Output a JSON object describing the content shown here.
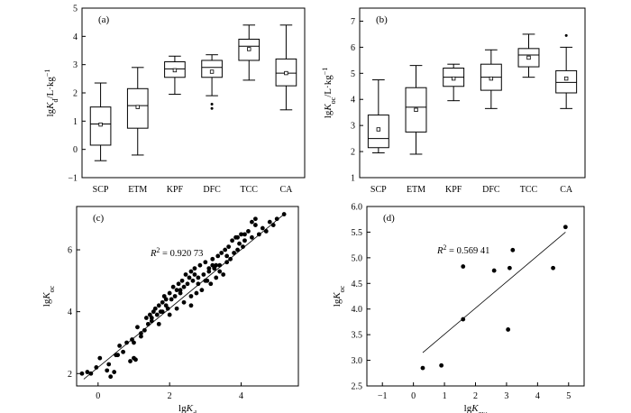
{
  "chart_data": [
    {
      "id": "a",
      "type": "box",
      "panel_label": "(a)",
      "ylabel_html": "lgK<sub>d</sub>/L·kg<sup>−1</sup>",
      "ylim": [
        -1,
        5
      ],
      "yticks": [
        -1,
        0,
        1,
        2,
        3,
        4,
        5
      ],
      "categories": [
        "SCP",
        "ETM",
        "KPF",
        "DFC",
        "TCC",
        "CA"
      ],
      "boxes": [
        {
          "whisker_low": -0.4,
          "q1": 0.15,
          "median": 0.9,
          "q3": 1.5,
          "whisker_high": 2.35,
          "mean": 0.88,
          "outliers": []
        },
        {
          "whisker_low": -0.2,
          "q1": 0.75,
          "median": 1.55,
          "q3": 2.15,
          "whisker_high": 2.9,
          "mean": 1.5,
          "outliers": []
        },
        {
          "whisker_low": 1.95,
          "q1": 2.55,
          "median": 2.85,
          "q3": 3.1,
          "whisker_high": 3.3,
          "mean": 2.8,
          "outliers": []
        },
        {
          "whisker_low": 1.9,
          "q1": 2.55,
          "median": 2.9,
          "q3": 3.15,
          "whisker_high": 3.35,
          "mean": 2.75,
          "outliers": [
            1.6,
            1.45
          ]
        },
        {
          "whisker_low": 2.45,
          "q1": 3.15,
          "median": 3.65,
          "q3": 3.9,
          "whisker_high": 4.4,
          "mean": 3.55,
          "outliers": []
        },
        {
          "whisker_low": 1.4,
          "q1": 2.25,
          "median": 2.7,
          "q3": 3.2,
          "whisker_high": 4.4,
          "mean": 2.7,
          "outliers": []
        }
      ]
    },
    {
      "id": "b",
      "type": "box",
      "panel_label": "(b)",
      "ylabel_html": "lgK<sub>oc</sub>/L·kg<sup>−1</sup>",
      "ylim": [
        1,
        7.5
      ],
      "yticks": [
        1,
        2,
        3,
        4,
        5,
        6,
        7
      ],
      "categories": [
        "SCP",
        "ETM",
        "KPF",
        "DFC",
        "TCC",
        "CA"
      ],
      "boxes": [
        {
          "whisker_low": 1.95,
          "q1": 2.15,
          "median": 2.5,
          "q3": 3.4,
          "whisker_high": 4.75,
          "mean": 2.85,
          "outliers": []
        },
        {
          "whisker_low": 1.9,
          "q1": 2.75,
          "median": 3.7,
          "q3": 4.45,
          "whisker_high": 5.3,
          "mean": 3.6,
          "outliers": []
        },
        {
          "whisker_low": 3.95,
          "q1": 4.5,
          "median": 4.85,
          "q3": 5.2,
          "whisker_high": 5.35,
          "mean": 4.8,
          "outliers": []
        },
        {
          "whisker_low": 3.65,
          "q1": 4.35,
          "median": 4.85,
          "q3": 5.35,
          "whisker_high": 5.9,
          "mean": 4.8,
          "outliers": []
        },
        {
          "whisker_low": 4.85,
          "q1": 5.25,
          "median": 5.7,
          "q3": 5.95,
          "whisker_high": 6.5,
          "mean": 5.6,
          "outliers": []
        },
        {
          "whisker_low": 3.65,
          "q1": 4.25,
          "median": 4.65,
          "q3": 5.1,
          "whisker_high": 6.0,
          "mean": 4.8,
          "outliers": [
            6.45
          ]
        }
      ]
    },
    {
      "id": "c",
      "type": "scatter",
      "panel_label": "(c)",
      "annotation_html": "<tspan font-style='italic'>R</tspan><tspan baseline-shift='super' font-size='8'>2</tspan> = 0.920 73",
      "xlabel_html": "lgK<sub>d</sub>",
      "ylabel_html": "lgK<sub>oc</sub>",
      "xlim": [
        -0.6,
        5.6
      ],
      "ylim": [
        1.6,
        7.4
      ],
      "xticks": [
        0,
        2,
        4
      ],
      "yticks": [
        2,
        4,
        6
      ],
      "fit": {
        "x": [
          -0.4,
          5.2
        ],
        "y": [
          1.82,
          7.15
        ]
      },
      "x": [
        -0.45,
        -0.3,
        -0.2,
        -0.05,
        0.05,
        0.25,
        0.35,
        0.45,
        0.55,
        0.6,
        0.7,
        0.8,
        0.9,
        0.95,
        1.0,
        1.05,
        1.1,
        1.2,
        1.3,
        1.35,
        1.4,
        1.45,
        1.5,
        1.55,
        1.6,
        1.65,
        1.7,
        1.75,
        1.8,
        1.85,
        1.9,
        1.95,
        2.0,
        2.05,
        2.1,
        2.15,
        2.2,
        2.25,
        2.3,
        2.35,
        2.4,
        2.45,
        2.5,
        2.55,
        2.6,
        2.65,
        2.7,
        2.75,
        2.8,
        2.85,
        2.9,
        2.95,
        3.0,
        3.05,
        3.1,
        3.15,
        3.2,
        3.25,
        3.3,
        3.35,
        3.4,
        3.45,
        3.5,
        3.55,
        3.6,
        3.65,
        3.7,
        3.75,
        3.8,
        3.85,
        3.9,
        3.95,
        4.0,
        4.05,
        4.1,
        4.2,
        4.3,
        4.4,
        4.5,
        4.6,
        4.7,
        4.8,
        4.9,
        5.0,
        5.2,
        1.0,
        0.3,
        0.5,
        1.2,
        1.7,
        1.9,
        2.2,
        2.4,
        2.6,
        2.8,
        3.0,
        3.2,
        3.4,
        2.0,
        2.3,
        2.7,
        3.1,
        3.6,
        4.1,
        4.3,
        1.5,
        1.8,
        2.6,
        3.3,
        3.9,
        4.4
      ],
      "y": [
        2.0,
        2.05,
        2.0,
        2.2,
        2.5,
        2.1,
        1.9,
        2.05,
        2.6,
        2.9,
        2.7,
        3.0,
        2.4,
        3.1,
        3.0,
        2.45,
        3.5,
        3.3,
        3.4,
        3.8,
        3.6,
        3.9,
        3.7,
        4.0,
        4.1,
        3.9,
        4.2,
        4.0,
        4.3,
        4.5,
        4.2,
        4.1,
        4.6,
        4.4,
        4.8,
        4.5,
        4.7,
        4.9,
        4.6,
        5.0,
        4.8,
        5.2,
        4.9,
        5.1,
        5.3,
        5.0,
        5.4,
        4.6,
        5.1,
        5.5,
        4.7,
        5.2,
        5.6,
        5.0,
        5.3,
        4.9,
        5.7,
        5.4,
        5.1,
        5.8,
        5.5,
        5.9,
        5.2,
        6.0,
        5.6,
        6.1,
        5.7,
        6.3,
        5.9,
        6.4,
        6.0,
        6.2,
        6.5,
        6.1,
        6.3,
        6.6,
        6.4,
        6.8,
        6.5,
        6.7,
        6.6,
        6.9,
        6.8,
        7.0,
        7.15,
        2.5,
        2.3,
        2.6,
        3.2,
        3.6,
        4.4,
        4.1,
        4.3,
        4.5,
        4.9,
        5.0,
        5.5,
        5.3,
        3.9,
        4.7,
        5.2,
        5.4,
        5.8,
        6.5,
        6.9,
        3.8,
        4.0,
        4.2,
        5.5,
        6.4,
        7.0
      ]
    },
    {
      "id": "d",
      "type": "scatter",
      "panel_label": "(d)",
      "annotation_html": "<tspan font-style='italic'>R</tspan><tspan baseline-shift='super' font-size='8'>2</tspan> = 0.569 41",
      "xlabel_html": "lgK<sub>ow</sub>",
      "ylabel_html": "lgK<sub>oc</sub>",
      "xlim": [
        -1.5,
        5.5
      ],
      "ylim": [
        2.5,
        6.0
      ],
      "xticks": [
        -1,
        0,
        1,
        2,
        3,
        4,
        5
      ],
      "yticks": [
        2.5,
        3.0,
        3.5,
        4.0,
        4.5,
        5.0,
        5.5,
        6.0
      ],
      "fit": {
        "x": [
          0.3,
          4.9
        ],
        "y": [
          3.15,
          5.5
        ]
      },
      "x": [
        0.3,
        0.9,
        1.6,
        1.6,
        2.6,
        3.05,
        3.1,
        3.2,
        4.5,
        4.9
      ],
      "y": [
        2.85,
        2.9,
        3.8,
        4.83,
        4.75,
        3.6,
        4.8,
        5.15,
        4.8,
        5.6
      ]
    }
  ]
}
